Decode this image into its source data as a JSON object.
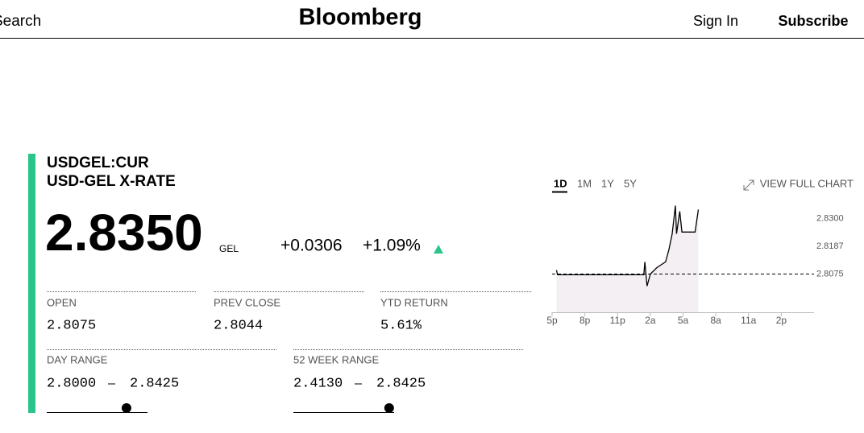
{
  "header": {
    "search": "Search",
    "logo": "Bloomberg",
    "sign_in": "Sign In",
    "subscribe": "Subscribe"
  },
  "quote": {
    "ticker": "USDGEL:CUR",
    "name": "USD-GEL X-RATE",
    "price": "2.8350",
    "currency": "GEL",
    "change": "+0.0306",
    "change_pct": "+1.09%"
  },
  "stats": [
    {
      "label": "OPEN",
      "value": "2.8075"
    },
    {
      "label": "PREV CLOSE",
      "value": "2.8044"
    },
    {
      "label": "YTD RETURN",
      "value": "5.61%"
    }
  ],
  "ranges": [
    {
      "label": "DAY RANGE",
      "low": "2.8000",
      "high": "2.8425"
    },
    {
      "label": "52 WEEK RANGE",
      "low": "2.4130",
      "high": "2.8425"
    }
  ],
  "chart": {
    "type": "line",
    "tabs": [
      "1D",
      "1M",
      "1Y",
      "5Y"
    ],
    "active_tab": 0,
    "link": "VIEW FULL CHART",
    "x": [
      0.4,
      0.5,
      8.4,
      8.5,
      8.7,
      9.0,
      9.6,
      10.4,
      10.7,
      11.0,
      11.3,
      11.4,
      11.7,
      11.9,
      13.1,
      13.4
    ],
    "values": [
      2.8091,
      2.8072,
      2.8072,
      2.8124,
      2.8026,
      2.8075,
      2.8101,
      2.8124,
      2.8173,
      2.8238,
      2.8352,
      2.8238,
      2.8329,
      2.8245,
      2.8245,
      2.8336
    ],
    "reference": 2.8075,
    "xlim": [
      0,
      24
    ],
    "xticks": [
      {
        "value": 0,
        "label": "5p"
      },
      {
        "value": 3,
        "label": "8p"
      },
      {
        "value": 6,
        "label": "11p"
      },
      {
        "value": 9,
        "label": "2a"
      },
      {
        "value": 12,
        "label": "5a"
      },
      {
        "value": 15,
        "label": "8a"
      },
      {
        "value": 18,
        "label": "11a"
      },
      {
        "value": 21,
        "label": "2p"
      }
    ],
    "ylim": [
      2.792,
      2.837
    ],
    "yticks": [
      {
        "value": 2.83,
        "label": "2.8300"
      },
      {
        "value": 2.8187,
        "label": "2.8187"
      },
      {
        "value": 2.8075,
        "label": "2.8075"
      }
    ],
    "color": "#000000",
    "fill": "#f3eff3"
  }
}
